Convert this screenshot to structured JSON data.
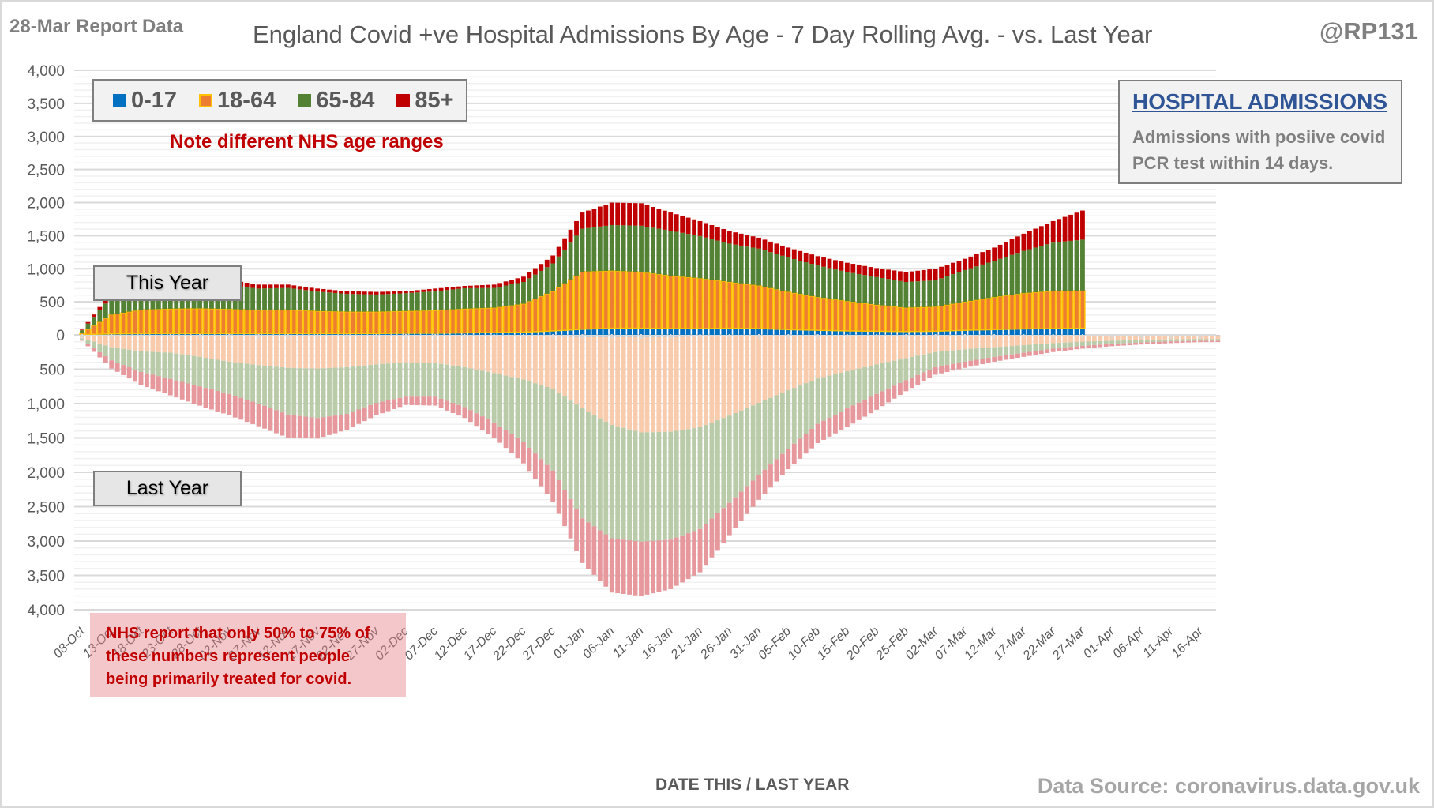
{
  "header": {
    "report_label": "28-Mar Report Data",
    "title": "England Covid +ve Hospital Admissions By Age - 7 Day Rolling Avg. - vs. Last Year",
    "handle": "@RP131"
  },
  "legend": [
    {
      "label": "0-17",
      "color": "#0070c0"
    },
    {
      "label": "18-64",
      "color": "#ed7d31",
      "border": "#ffc000"
    },
    {
      "label": "65-84",
      "color": "#548235"
    },
    {
      "label": "85+",
      "color": "#c00000"
    }
  ],
  "note": "Note different NHS  age ranges",
  "info_box": {
    "title": "HOSPITAL ADMISSIONS",
    "line1": "Admissions with posiive covid",
    "line2": "PCR test within 14 days."
  },
  "this_year_label": "This Year",
  "last_year_label": "Last Year",
  "nhs_note": {
    "line1": "NHS report that only 50% to 75% of",
    "line2": "these numbers represent people",
    "line3": "being primarily treated for covid."
  },
  "xaxis_label": "DATE THIS / LAST YEAR",
  "source": "Data Source: coronavirus.data.gov.uk",
  "chart_data": {
    "type": "bar",
    "stacked": true,
    "title": "England Covid +ve Hospital Admissions By Age - 7 Day Rolling Avg. - vs. Last Year",
    "xlabel": "DATE THIS / LAST YEAR",
    "ylabel": "",
    "ylim": [
      -4000,
      4000
    ],
    "yticks": [
      "4,000",
      "3,500",
      "3,000",
      "2,500",
      "2,000",
      "1,500",
      "1,000",
      "500",
      "0",
      "500",
      "1,000",
      "1,500",
      "2,000",
      "2,500",
      "3,000",
      "3,500",
      "4,000"
    ],
    "x_tick_labels": [
      "08-Oct",
      "13-Oct",
      "18-Oct",
      "23-Oct",
      "28-Oct",
      "02-Nov",
      "07-Nov",
      "12-Nov",
      "17-Nov",
      "22-Nov",
      "27-Nov",
      "02-Dec",
      "07-Dec",
      "12-Dec",
      "17-Dec",
      "22-Dec",
      "27-Dec",
      "01-Jan",
      "06-Jan",
      "11-Jan",
      "16-Jan",
      "21-Jan",
      "26-Jan",
      "31-Jan",
      "05-Feb",
      "10-Feb",
      "15-Feb",
      "20-Feb",
      "25-Feb",
      "02-Mar",
      "07-Mar",
      "12-Mar",
      "17-Mar",
      "22-Mar",
      "27-Mar",
      "01-Apr",
      "06-Apr",
      "11-Apr",
      "16-Apr"
    ],
    "tick_step_days": 5,
    "total_days": 193,
    "note": "Values sampled at each 5-day tick; bars are daily (interpolated). This year plotted above zero, last year plotted below zero (shown as positive magnitudes).",
    "this_year": {
      "days_shown": 171,
      "series": [
        {
          "name": "0-17",
          "values": [
            5,
            15,
            20,
            20,
            20,
            20,
            20,
            20,
            20,
            20,
            20,
            25,
            25,
            30,
            35,
            40,
            60,
            85,
            100,
            100,
            95,
            95,
            100,
            95,
            80,
            70,
            60,
            55,
            50,
            55,
            70,
            80,
            90,
            95,
            100
          ]
        },
        {
          "name": "18-64",
          "values": [
            25,
            290,
            360,
            375,
            380,
            370,
            355,
            360,
            340,
            330,
            330,
            335,
            345,
            365,
            375,
            430,
            600,
            870,
            870,
            850,
            800,
            760,
            700,
            650,
            570,
            500,
            450,
            400,
            360,
            370,
            430,
            490,
            540,
            570,
            570
          ]
        },
        {
          "name": "65-84",
          "values": [
            40,
            270,
            340,
            360,
            370,
            360,
            325,
            330,
            295,
            270,
            260,
            270,
            290,
            310,
            300,
            330,
            420,
            650,
            690,
            700,
            680,
            640,
            580,
            560,
            520,
            480,
            440,
            420,
            390,
            400,
            480,
            550,
            640,
            730,
            770
          ]
        },
        {
          "name": "85+",
          "values": [
            10,
            75,
            80,
            75,
            90,
            80,
            60,
            50,
            45,
            40,
            40,
            30,
            40,
            35,
            50,
            80,
            120,
            245,
            340,
            340,
            275,
            225,
            190,
            165,
            150,
            140,
            140,
            135,
            150,
            175,
            170,
            200,
            260,
            325,
            440
          ]
        }
      ]
    },
    "last_year": {
      "series": [
        {
          "name": "0-17",
          "values": [
            5,
            10,
            10,
            10,
            10,
            10,
            10,
            10,
            10,
            10,
            10,
            10,
            10,
            10,
            15,
            20,
            25,
            30,
            30,
            30,
            30,
            25,
            25,
            20,
            15,
            15,
            10,
            10,
            10,
            10,
            10,
            10,
            10,
            10,
            10,
            10,
            10,
            5,
            5
          ]
        },
        {
          "name": "18-64",
          "values": [
            40,
            170,
            230,
            250,
            310,
            380,
            430,
            470,
            480,
            460,
            420,
            390,
            400,
            460,
            540,
            630,
            760,
            1040,
            1280,
            1390,
            1380,
            1320,
            1150,
            970,
            790,
            620,
            520,
            420,
            330,
            240,
            200,
            170,
            140,
            110,
            90,
            75,
            65,
            60,
            55
          ]
        },
        {
          "name": "65-84",
          "values": [
            30,
            190,
            300,
            380,
            430,
            470,
            560,
            680,
            720,
            680,
            560,
            500,
            490,
            580,
            720,
            910,
            1190,
            1600,
            1650,
            1590,
            1570,
            1480,
            1270,
            1050,
            850,
            660,
            540,
            430,
            320,
            220,
            180,
            140,
            110,
            80,
            60,
            45,
            35,
            30,
            25
          ]
        },
        {
          "name": "85+",
          "values": [
            10,
            120,
            190,
            240,
            280,
            310,
            330,
            340,
            300,
            230,
            180,
            120,
            130,
            160,
            220,
            310,
            450,
            650,
            790,
            790,
            720,
            630,
            470,
            360,
            300,
            280,
            270,
            230,
            160,
            110,
            90,
            70,
            60,
            50,
            40,
            35,
            30,
            25,
            20
          ]
        }
      ]
    },
    "colors": {
      "this_year": {
        "0-17": "#0070c0",
        "18-64": "#ed7d31",
        "18-64-border": "#ffc000",
        "65-84": "#548235",
        "85+": "#c00000"
      },
      "last_year": {
        "0-17": "#9dc3e6",
        "18-64": "#f8cbad",
        "65-84": "#b9cba8",
        "85+": "#e6989d"
      }
    },
    "grid": true,
    "legend_position": "top-left"
  }
}
